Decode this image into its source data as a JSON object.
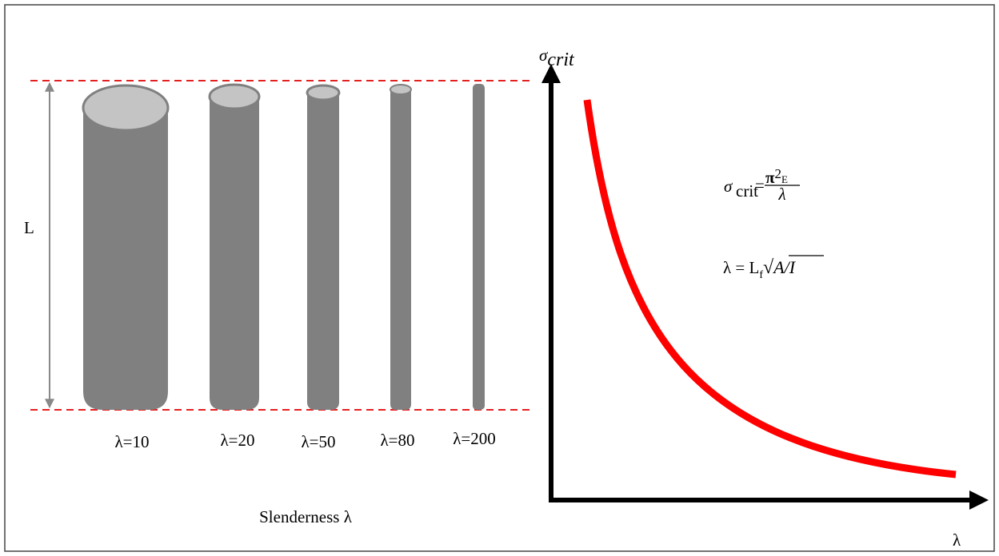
{
  "length_label": "L",
  "columns": [
    {
      "label": "λ=10"
    },
    {
      "label": "λ=20"
    },
    {
      "label": "λ=50"
    },
    {
      "label": "λ=80"
    },
    {
      "label": "λ=200"
    }
  ],
  "caption": "Slenderness λ",
  "axes": {
    "y_symbol": "σ",
    "y_subscript": "crit",
    "x_label": "λ"
  },
  "formula_stress": {
    "symbol": "σ",
    "subscript": "crit",
    "equals": "=",
    "numerator_symbol": "π",
    "exponent": "2",
    "numerator_tail": "E",
    "denominator": "λ"
  },
  "formula_slenderness": {
    "lhs": "λ = L",
    "subscript": "f",
    "radical": "√",
    "radicand": "A/I"
  }
}
